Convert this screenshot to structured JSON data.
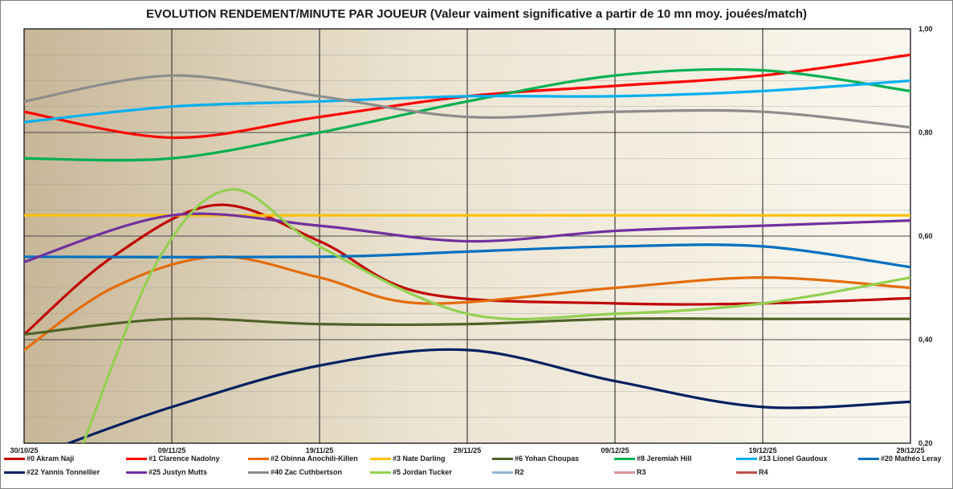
{
  "chart_data": {
    "type": "line",
    "title": "EVOLUTION  RENDEMENT/MINUTE  PAR JOUEUR    (Valeur vaiment significative a partir de 10 mn moy. jouées/match)",
    "x_dates": [
      "2025-10-30",
      "2025-11-09",
      "2025-11-19",
      "2025-11-29",
      "2025-12-09",
      "2025-12-19",
      "2025-12-29"
    ],
    "x_tick_labels": [
      "30/10/25",
      "09/11/25",
      "19/11/25",
      "29/11/25",
      "09/12/25",
      "19/12/25",
      "29/12/25"
    ],
    "y_tick_labels": [
      "1,00",
      "0,80",
      "0,60",
      "0,40",
      "0,20"
    ],
    "ylim": [
      0.2,
      1.0
    ],
    "y_ticks": [
      1.0,
      0.8,
      0.6,
      0.4,
      0.2
    ],
    "grid": true,
    "y_axis_side": "right",
    "legend_position": "bottom",
    "plot_background": "gradient tan to light beige",
    "series": [
      {
        "name": "#0 Akram Naji",
        "color": "#c00000",
        "points": [
          [
            "2025-10-30",
            0.41
          ],
          [
            "2025-11-05",
            0.56
          ],
          [
            "2025-11-12",
            0.66
          ],
          [
            "2025-11-19",
            0.59
          ],
          [
            "2025-11-26",
            0.49
          ],
          [
            "2025-12-09",
            0.47
          ],
          [
            "2025-12-19",
            0.47
          ],
          [
            "2025-12-29",
            0.48
          ]
        ]
      },
      {
        "name": "#1 Clarence Nadolny",
        "color": "#ff0000",
        "points": [
          [
            "2025-10-30",
            0.84
          ],
          [
            "2025-11-09",
            0.79
          ],
          [
            "2025-11-19",
            0.83
          ],
          [
            "2025-11-29",
            0.87
          ],
          [
            "2025-12-09",
            0.89
          ],
          [
            "2025-12-19",
            0.91
          ],
          [
            "2025-12-29",
            0.95
          ]
        ]
      },
      {
        "name": "#2 Obinna Anochili-Killen",
        "color": "#e46c0a",
        "points": [
          [
            "2025-10-30",
            0.38
          ],
          [
            "2025-11-05",
            0.5
          ],
          [
            "2025-11-12",
            0.56
          ],
          [
            "2025-11-19",
            0.52
          ],
          [
            "2025-11-26",
            0.47
          ],
          [
            "2025-12-09",
            0.5
          ],
          [
            "2025-12-19",
            0.52
          ],
          [
            "2025-12-29",
            0.5
          ]
        ]
      },
      {
        "name": "#3 Nate Darling",
        "color": "#ffc000",
        "points": [
          [
            "2025-10-30",
            0.64
          ],
          [
            "2025-12-29",
            0.64
          ]
        ]
      },
      {
        "name": "#6 Yohan Choupas",
        "color": "#4f6228",
        "points": [
          [
            "2025-10-30",
            0.41
          ],
          [
            "2025-11-09",
            0.44
          ],
          [
            "2025-11-19",
            0.43
          ],
          [
            "2025-11-29",
            0.43
          ],
          [
            "2025-12-09",
            0.44
          ],
          [
            "2025-12-19",
            0.44
          ],
          [
            "2025-12-29",
            0.44
          ]
        ]
      },
      {
        "name": "#8 Jeremiah Hill",
        "color": "#00b050",
        "points": [
          [
            "2025-10-30",
            0.75
          ],
          [
            "2025-11-09",
            0.75
          ],
          [
            "2025-11-19",
            0.8
          ],
          [
            "2025-11-29",
            0.86
          ],
          [
            "2025-12-09",
            0.91
          ],
          [
            "2025-12-19",
            0.92
          ],
          [
            "2025-12-29",
            0.88
          ]
        ]
      },
      {
        "name": "#13 Lionel Gaudoux",
        "color": "#00b0f0",
        "points": [
          [
            "2025-10-30",
            0.82
          ],
          [
            "2025-11-09",
            0.85
          ],
          [
            "2025-11-19",
            0.86
          ],
          [
            "2025-11-29",
            0.87
          ],
          [
            "2025-12-09",
            0.87
          ],
          [
            "2025-12-19",
            0.88
          ],
          [
            "2025-12-29",
            0.9
          ]
        ]
      },
      {
        "name": "#20 Mathéo Leray",
        "color": "#0070c0",
        "points": [
          [
            "2025-10-30",
            0.56
          ],
          [
            "2025-11-19",
            0.56
          ],
          [
            "2025-11-29",
            0.57
          ],
          [
            "2025-12-09",
            0.58
          ],
          [
            "2025-12-19",
            0.58
          ],
          [
            "2025-12-29",
            0.54
          ]
        ]
      },
      {
        "name": "#22 Yannis Tonnellier",
        "color": "#002060",
        "points": [
          [
            "2025-11-02",
            0.2
          ],
          [
            "2025-11-09",
            0.27
          ],
          [
            "2025-11-19",
            0.35
          ],
          [
            "2025-11-29",
            0.38
          ],
          [
            "2025-12-09",
            0.32
          ],
          [
            "2025-12-19",
            0.27
          ],
          [
            "2025-12-29",
            0.28
          ]
        ]
      },
      {
        "name": "#25 Justyn Mutts",
        "color": "#7030a0",
        "points": [
          [
            "2025-10-30",
            0.55
          ],
          [
            "2025-11-09",
            0.64
          ],
          [
            "2025-11-19",
            0.62
          ],
          [
            "2025-11-29",
            0.59
          ],
          [
            "2025-12-09",
            0.61
          ],
          [
            "2025-12-19",
            0.62
          ],
          [
            "2025-12-29",
            0.63
          ]
        ]
      },
      {
        "name": "#40 Zac Cuthbertson",
        "color": "#8c8c8c",
        "points": [
          [
            "2025-10-30",
            0.86
          ],
          [
            "2025-11-09",
            0.91
          ],
          [
            "2025-11-19",
            0.87
          ],
          [
            "2025-11-29",
            0.83
          ],
          [
            "2025-12-09",
            0.84
          ],
          [
            "2025-12-19",
            0.84
          ],
          [
            "2025-12-29",
            0.81
          ]
        ]
      },
      {
        "name": "#5 Jordan Tucker",
        "color": "#92d050",
        "points": [
          [
            "2025-11-03",
            0.2
          ],
          [
            "2025-11-08",
            0.55
          ],
          [
            "2025-11-13",
            0.69
          ],
          [
            "2025-11-19",
            0.58
          ],
          [
            "2025-11-29",
            0.45
          ],
          [
            "2025-12-09",
            0.45
          ],
          [
            "2025-12-19",
            0.47
          ],
          [
            "2025-12-29",
            0.52
          ]
        ]
      },
      {
        "name": "R2",
        "color": "#95b3d7",
        "points": []
      },
      {
        "name": "R3",
        "color": "#d99694",
        "points": []
      },
      {
        "name": "R4",
        "color": "#c0504d",
        "points": []
      }
    ]
  }
}
